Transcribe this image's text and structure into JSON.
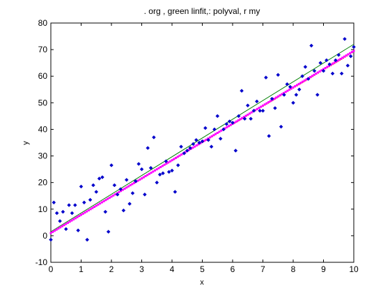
{
  "chart_data": {
    "type": "scatter",
    "title": ". org , green linfit,: polyval, r my",
    "xlabel": "x",
    "ylabel": "y",
    "xlim": [
      0,
      10
    ],
    "ylim": [
      -10,
      80
    ],
    "xticks": [
      0,
      1,
      2,
      3,
      4,
      5,
      6,
      7,
      8,
      9,
      10
    ],
    "yticks": [
      -10,
      0,
      10,
      20,
      30,
      40,
      50,
      60,
      70,
      80
    ],
    "grid": false,
    "legend": "none",
    "colors": {
      "data_points": "#0000cc",
      "linfit": "#008000",
      "polyval": "#ff0000",
      "fit_markers": "#ff00ff"
    },
    "series": [
      {
        "kind": "scatter",
        "x": [
          0.0,
          0.1,
          0.2,
          0.3,
          0.4,
          0.5,
          0.6,
          0.7,
          0.8,
          0.9,
          1.0,
          1.1,
          1.2,
          1.3,
          1.4,
          1.5,
          1.6,
          1.7,
          1.8,
          1.9,
          2.0,
          2.1,
          2.2,
          2.3,
          2.4,
          2.5,
          2.6,
          2.7,
          2.8,
          2.9,
          3.0,
          3.1,
          3.2,
          3.3,
          3.4,
          3.5,
          3.6,
          3.7,
          3.8,
          3.9,
          4.0,
          4.1,
          4.2,
          4.3,
          4.4,
          4.5,
          4.6,
          4.7,
          4.8,
          4.9,
          5.0,
          5.1,
          5.2,
          5.3,
          5.4,
          5.5,
          5.6,
          5.7,
          5.8,
          5.9,
          6.0,
          6.1,
          6.2,
          6.3,
          6.4,
          6.5,
          6.6,
          6.7,
          6.8,
          6.9,
          7.0,
          7.1,
          7.2,
          7.3,
          7.4,
          7.5,
          7.6,
          7.7,
          7.8,
          7.9,
          8.0,
          8.1,
          8.2,
          8.3,
          8.4,
          8.5,
          8.6,
          8.7,
          8.8,
          8.9,
          9.0,
          9.1,
          9.2,
          9.3,
          9.4,
          9.5,
          9.6,
          9.7,
          9.8,
          9.9,
          10.0
        ],
        "y": [
          -1.5,
          12.5,
          8.5,
          5.5,
          9,
          2.5,
          11.5,
          8.5,
          11.5,
          2,
          18.5,
          12.5,
          -1.5,
          13.5,
          19,
          16.5,
          21.5,
          22,
          9,
          1.5,
          26.5,
          19,
          15.5,
          17.5,
          9.5,
          21,
          12,
          16,
          20.5,
          27,
          25,
          15.5,
          33,
          25.5,
          37,
          20,
          23,
          23.5,
          28,
          24,
          24.5,
          16.5,
          26.5,
          33.5,
          31,
          32,
          33,
          34.5,
          36,
          35,
          35.5,
          40.5,
          36,
          33.5,
          40,
          45,
          36.5,
          40,
          42,
          43,
          42.5,
          32,
          45,
          54.5,
          44,
          49,
          44,
          47,
          50.5,
          47,
          47,
          59.5,
          37.5,
          51.5,
          48,
          60.5,
          41,
          53,
          57,
          56,
          50,
          53,
          55,
          60,
          63.5,
          59,
          71.5,
          62,
          53,
          65,
          62,
          66,
          64.5,
          61,
          66,
          68,
          61,
          74,
          64,
          67.5,
          71
        ]
      },
      {
        "kind": "line",
        "name": "linfit",
        "x": [
          0,
          10
        ],
        "y": [
          1.5,
          72
        ]
      },
      {
        "kind": "line",
        "name": "polyval",
        "x": [
          0,
          10
        ],
        "y": [
          1,
          69
        ]
      },
      {
        "kind": "markers",
        "name": "r my",
        "x_start": 0,
        "x_end": 10,
        "y_start": 1,
        "y_end": 69.5
      }
    ]
  }
}
